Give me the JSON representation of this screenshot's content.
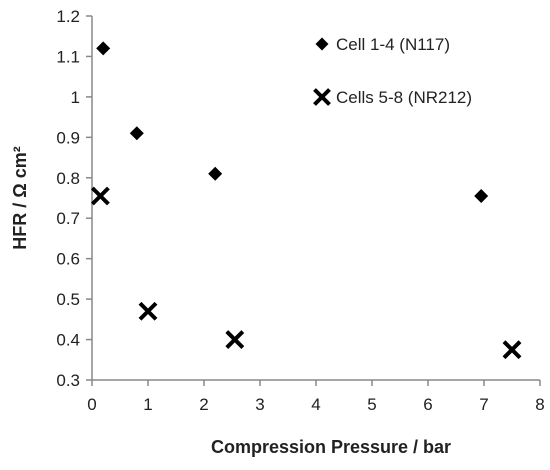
{
  "chart_data": {
    "type": "scatter",
    "xlabel": "Compression Pressure / bar",
    "ylabel": "HFR / Ω cm²",
    "xlim": [
      0,
      8
    ],
    "ylim": [
      0.3,
      1.2
    ],
    "x_ticks": [
      "0",
      "1",
      "2",
      "3",
      "4",
      "5",
      "6",
      "7",
      "8"
    ],
    "y_ticks": [
      "0.3",
      "0.4",
      "0.5",
      "0.6",
      "0.7",
      "0.8",
      "0.9",
      "1",
      "1.1",
      "1.2"
    ],
    "grid": false,
    "legend_position": "top-right",
    "series": [
      {
        "name": "Cell 1-4 (N117)",
        "marker": "diamond",
        "color": "#000000",
        "points": [
          {
            "x": 0.2,
            "y": 1.12
          },
          {
            "x": 0.8,
            "y": 0.91
          },
          {
            "x": 2.2,
            "y": 0.81
          },
          {
            "x": 6.95,
            "y": 0.755
          }
        ]
      },
      {
        "name": "Cells 5-8 (NR212)",
        "marker": "x",
        "color": "#000000",
        "points": [
          {
            "x": 0.15,
            "y": 0.755
          },
          {
            "x": 1.0,
            "y": 0.47
          },
          {
            "x": 2.55,
            "y": 0.4
          },
          {
            "x": 7.5,
            "y": 0.375
          }
        ]
      }
    ]
  }
}
